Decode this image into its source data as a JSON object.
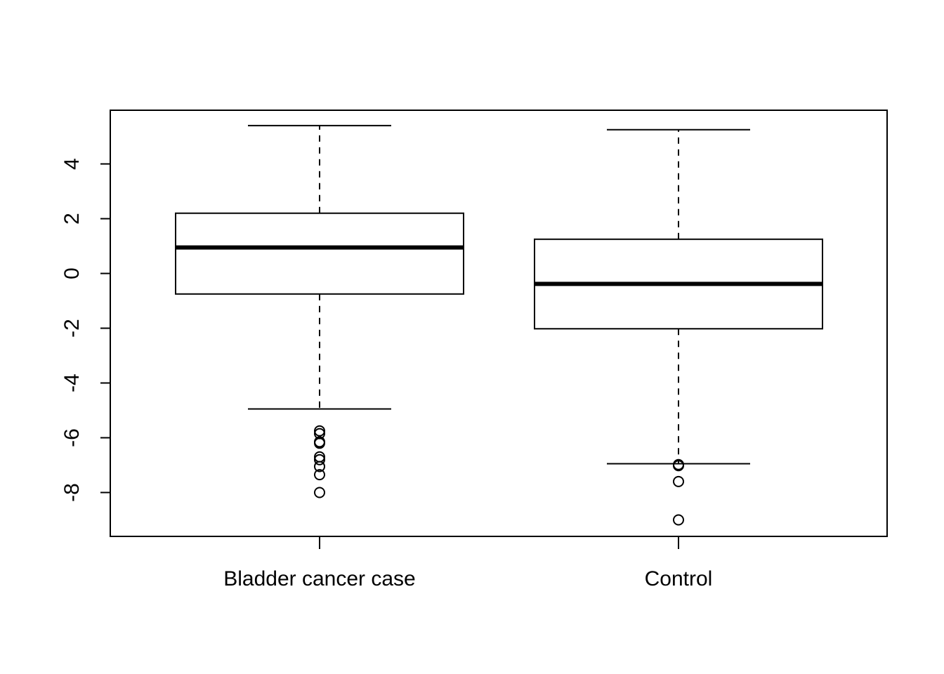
{
  "chart_data": {
    "type": "boxplot",
    "title": "",
    "xlabel": "",
    "ylabel": "",
    "categories": [
      "Bladder cancer case",
      "Control"
    ],
    "boxes": [
      {
        "category": "Bladder cancer case",
        "whisker_low": -4.95,
        "q1": -0.75,
        "median": 0.95,
        "q3": 2.2,
        "whisker_high": 5.4,
        "outliers": [
          -5.75,
          -5.85,
          -6.15,
          -6.2,
          -6.7,
          -6.8,
          -7.05,
          -7.35,
          -8.0
        ]
      },
      {
        "category": "Control",
        "whisker_low": -6.95,
        "q1": -2.02,
        "median": -0.38,
        "q3": 1.25,
        "whisker_high": 5.25,
        "outliers": [
          -6.98,
          -7.02,
          -7.6,
          -9.0
        ]
      }
    ],
    "ylim": [
      -9.6,
      5.95
    ],
    "yticks": [
      -8,
      -6,
      -4,
      -2,
      0,
      2,
      4
    ],
    "grid": false,
    "legend": "none"
  }
}
